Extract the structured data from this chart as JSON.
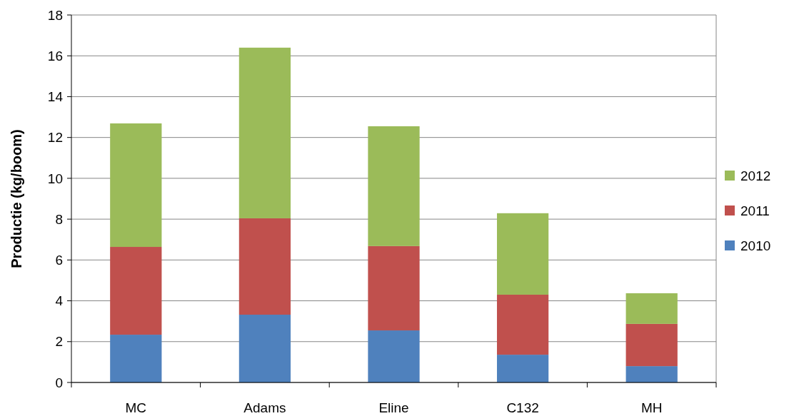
{
  "chart_data": {
    "type": "bar",
    "ylabel": "Productie (kg/boom)",
    "categories": [
      "MC",
      "Adams",
      "Eline",
      "C132",
      "MH"
    ],
    "stacked": true,
    "series": [
      {
        "name": "2010",
        "color": "#4f81bd",
        "values": [
          2.34,
          3.32,
          2.55,
          1.36,
          0.8
        ]
      },
      {
        "name": "2011",
        "color": "#c0504d",
        "values": [
          4.3,
          4.72,
          4.13,
          2.94,
          2.07
        ]
      },
      {
        "name": "2012",
        "color": "#9bbb59",
        "values": [
          6.05,
          8.36,
          5.87,
          3.99,
          1.5
        ]
      }
    ],
    "ylim": [
      0,
      18
    ],
    "yticks": [
      0,
      2,
      4,
      6,
      8,
      10,
      12,
      14,
      16,
      18
    ],
    "grid": "y",
    "legend": "right"
  }
}
